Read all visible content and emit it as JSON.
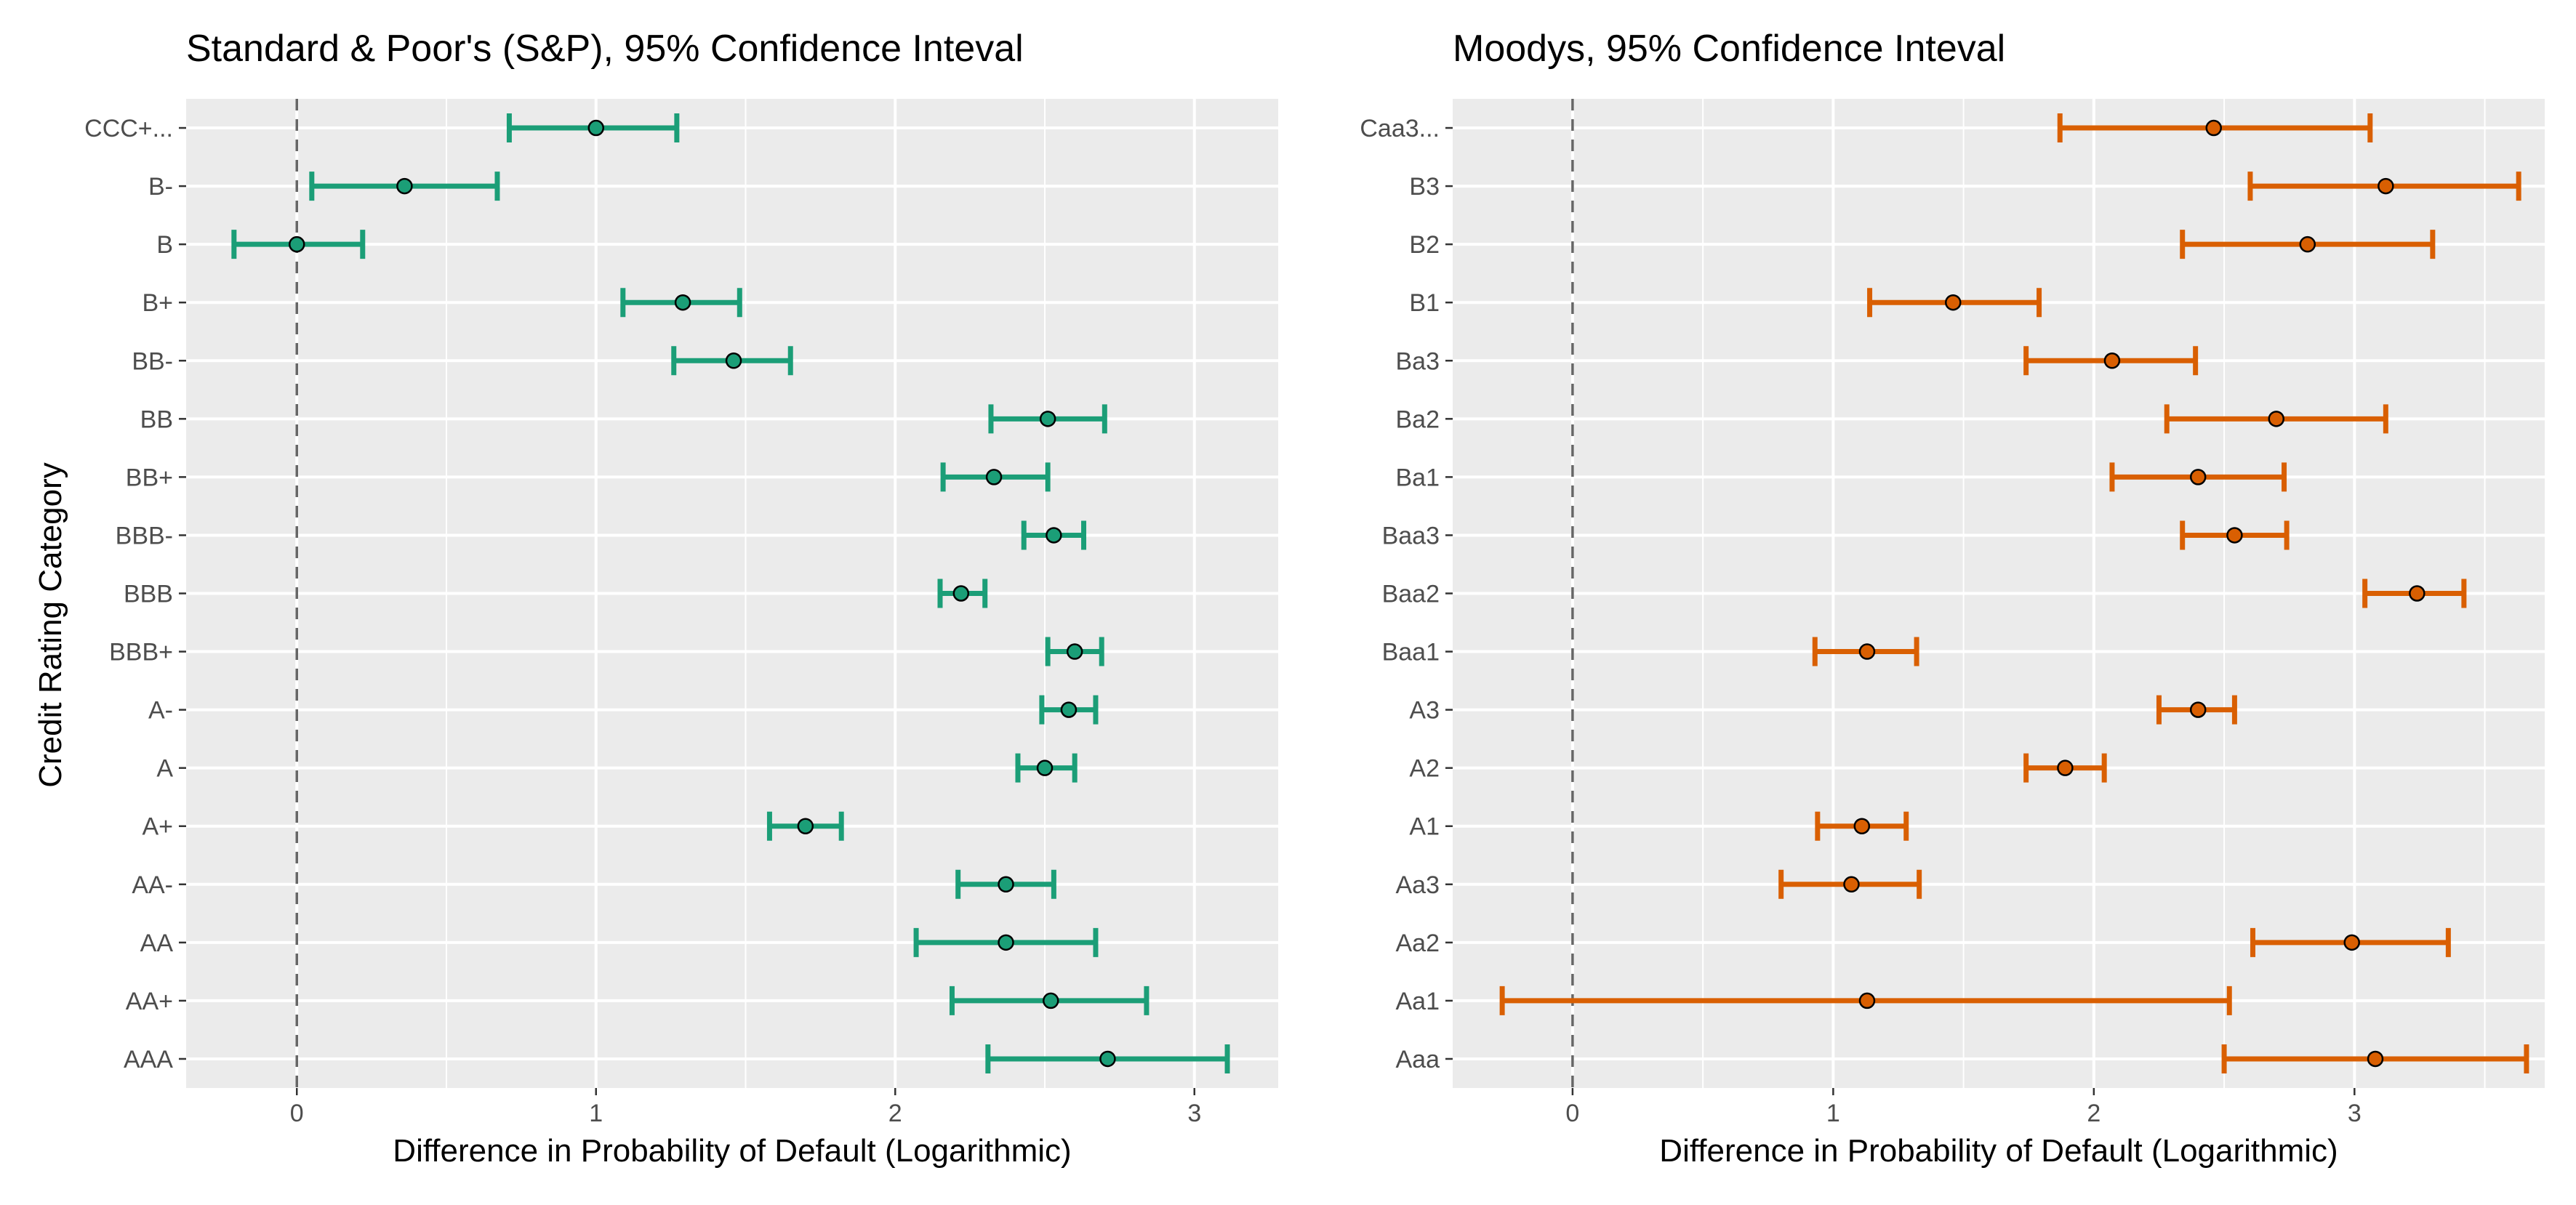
{
  "y_axis_title": "Credit Rating Category",
  "colors": {
    "sp": "#1b9e77",
    "moodys": "#d95f02",
    "panel_bg": "#ebebeb",
    "point_outline": "#000000"
  },
  "chart_data": [
    {
      "type": "errorbar",
      "title": "Standard & Poor's (S&P), 95% Confidence Inteval",
      "xlabel": "Difference in Probability of Default (Logarithmic)",
      "ylabel": "Credit Rating Category",
      "xlim": [
        -0.37,
        3.28
      ],
      "xticks": [
        0,
        1,
        2,
        3
      ],
      "grid": true,
      "reference_line": {
        "x": 0,
        "style": "dashed"
      },
      "color": "#1b9e77",
      "categories": [
        "CCC+...",
        "B-",
        "B",
        "B+",
        "BB-",
        "BB",
        "BB+",
        "BBB-",
        "BBB",
        "BBB+",
        "A-",
        "A",
        "A+",
        "AA-",
        "AA",
        "AA+",
        "AAA"
      ],
      "series": [
        {
          "estimate": [
            1.0,
            0.36,
            0.0,
            1.29,
            1.46,
            2.51,
            2.33,
            2.53,
            2.22,
            2.6,
            2.58,
            2.5,
            1.7,
            2.37,
            2.37,
            2.52,
            2.71
          ],
          "lower": [
            0.71,
            0.05,
            -0.21,
            1.09,
            1.26,
            2.32,
            2.16,
            2.43,
            2.15,
            2.51,
            2.49,
            2.41,
            1.58,
            2.21,
            2.07,
            2.19,
            2.31
          ],
          "upper": [
            1.27,
            0.67,
            0.22,
            1.48,
            1.65,
            2.7,
            2.51,
            2.63,
            2.3,
            2.69,
            2.67,
            2.6,
            1.82,
            2.53,
            2.67,
            2.84,
            3.11
          ]
        }
      ]
    },
    {
      "type": "errorbar",
      "title": "Moodys, 95% Confidence Inteval",
      "xlabel": "Difference in Probability of Default (Logarithmic)",
      "ylabel": "",
      "xlim": [
        -0.46,
        3.73
      ],
      "xticks": [
        0,
        1,
        2,
        3
      ],
      "grid": true,
      "reference_line": {
        "x": 0,
        "style": "dashed"
      },
      "color": "#d95f02",
      "categories": [
        "Caa3...",
        "B3",
        "B2",
        "B1",
        "Ba3",
        "Ba2",
        "Ba1",
        "Baa3",
        "Baa2",
        "Baa1",
        "A3",
        "A2",
        "A1",
        "Aa3",
        "Aa2",
        "Aa1",
        "Aaa"
      ],
      "series": [
        {
          "estimate": [
            2.46,
            3.12,
            2.82,
            1.46,
            2.07,
            2.7,
            2.4,
            2.54,
            3.24,
            1.13,
            2.4,
            1.89,
            1.11,
            1.07,
            2.99,
            1.13,
            3.08
          ],
          "lower": [
            1.87,
            2.6,
            2.34,
            1.14,
            1.74,
            2.28,
            2.07,
            2.34,
            3.04,
            0.93,
            2.25,
            1.74,
            0.94,
            0.8,
            2.61,
            -0.27,
            2.5
          ],
          "upper": [
            3.06,
            3.63,
            3.3,
            1.79,
            2.39,
            3.12,
            2.73,
            2.74,
            3.42,
            1.32,
            2.54,
            2.04,
            1.28,
            1.33,
            3.36,
            2.52,
            3.66
          ]
        }
      ]
    }
  ]
}
